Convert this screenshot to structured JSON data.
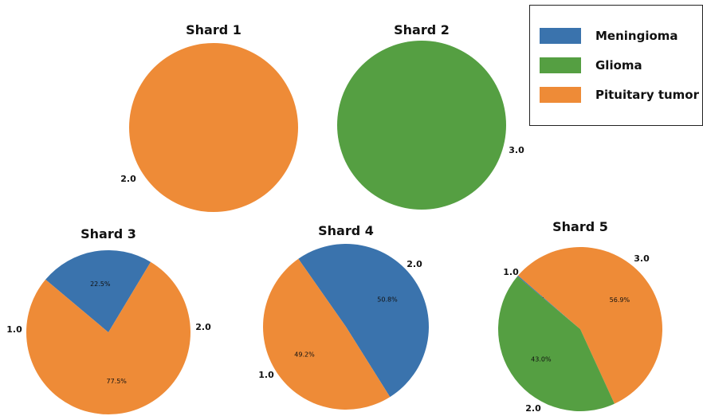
{
  "colors": {
    "meningioma": "#3a73ad",
    "glioma": "#559f42",
    "pituitary": "#ee8b37"
  },
  "legend": {
    "items": [
      {
        "label": "Meningioma",
        "color": "#3a73ad"
      },
      {
        "label": "Glioma",
        "color": "#559f42"
      },
      {
        "label": "Pituitary tumor",
        "color": "#ee8b37"
      }
    ]
  },
  "chart_data": [
    {
      "type": "pie",
      "title": "Shard 1",
      "slices": [
        {
          "category": "2.0",
          "label": "2.0",
          "value": 100.0,
          "color": "#ee8b37",
          "pct_label": ""
        }
      ]
    },
    {
      "type": "pie",
      "title": "Shard 2",
      "slices": [
        {
          "category": "3.0",
          "label": "3.0",
          "value": 100.0,
          "color": "#559f42",
          "pct_label": ""
        }
      ]
    },
    {
      "type": "pie",
      "title": "Shard 3",
      "slices": [
        {
          "category": "1.0",
          "label": "1.0",
          "value": 22.5,
          "color": "#3a73ad",
          "pct_label": "22.5%"
        },
        {
          "category": "2.0",
          "label": "2.0",
          "value": 77.5,
          "color": "#ee8b37",
          "pct_label": "77.5%"
        }
      ]
    },
    {
      "type": "pie",
      "title": "Shard 4",
      "slices": [
        {
          "category": "1.0",
          "label": "1.0",
          "value": 50.8,
          "color": "#3a73ad",
          "pct_label": "50.8%"
        },
        {
          "category": "2.0",
          "label": "2.0",
          "value": 49.2,
          "color": "#ee8b37",
          "pct_label": "49.2%"
        }
      ]
    },
    {
      "type": "pie",
      "title": "Shard 5",
      "slices": [
        {
          "category": "1.0",
          "label": "1.0",
          "value": 0.2,
          "color": "#3a73ad",
          "pct_label": "0.2%"
        },
        {
          "category": "2.0",
          "label": "2.0",
          "value": 56.9,
          "color": "#ee8b37",
          "pct_label": "56.9%"
        },
        {
          "category": "3.0",
          "label": "3.0",
          "value": 43.0,
          "color": "#559f42",
          "pct_label": "43.0%"
        }
      ]
    }
  ]
}
